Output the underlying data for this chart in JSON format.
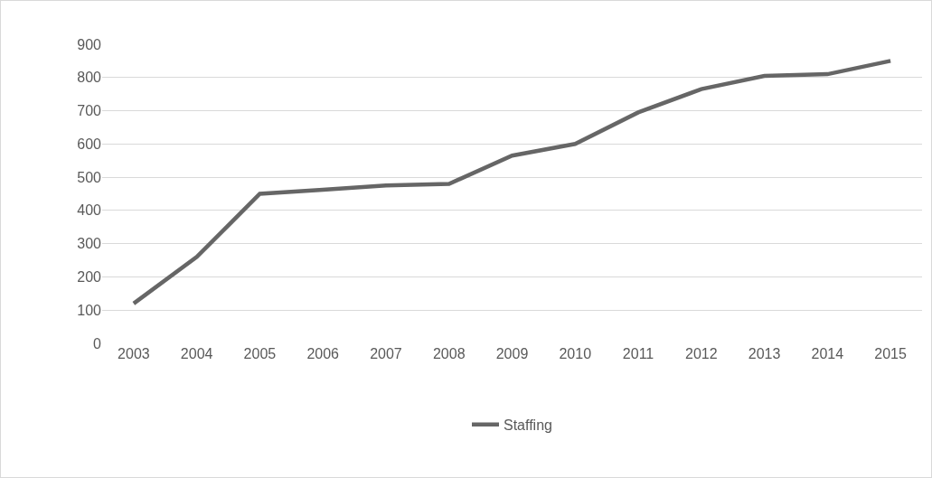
{
  "chart_data": {
    "type": "line",
    "categories": [
      "2003",
      "2004",
      "2005",
      "2006",
      "2007",
      "2008",
      "2009",
      "2010",
      "2011",
      "2012",
      "2013",
      "2014",
      "2015"
    ],
    "series": [
      {
        "name": "Staffing",
        "color": "#666666",
        "values": [
          120,
          260,
          450,
          462,
          475,
          480,
          565,
          600,
          695,
          765,
          805,
          810,
          850
        ]
      }
    ],
    "ylim": [
      0,
      900
    ],
    "yticks": [
      0,
      100,
      200,
      300,
      400,
      500,
      600,
      700,
      800,
      900
    ],
    "grid": "y",
    "legend": "bottom",
    "marker": "none",
    "line_style": "solid"
  }
}
